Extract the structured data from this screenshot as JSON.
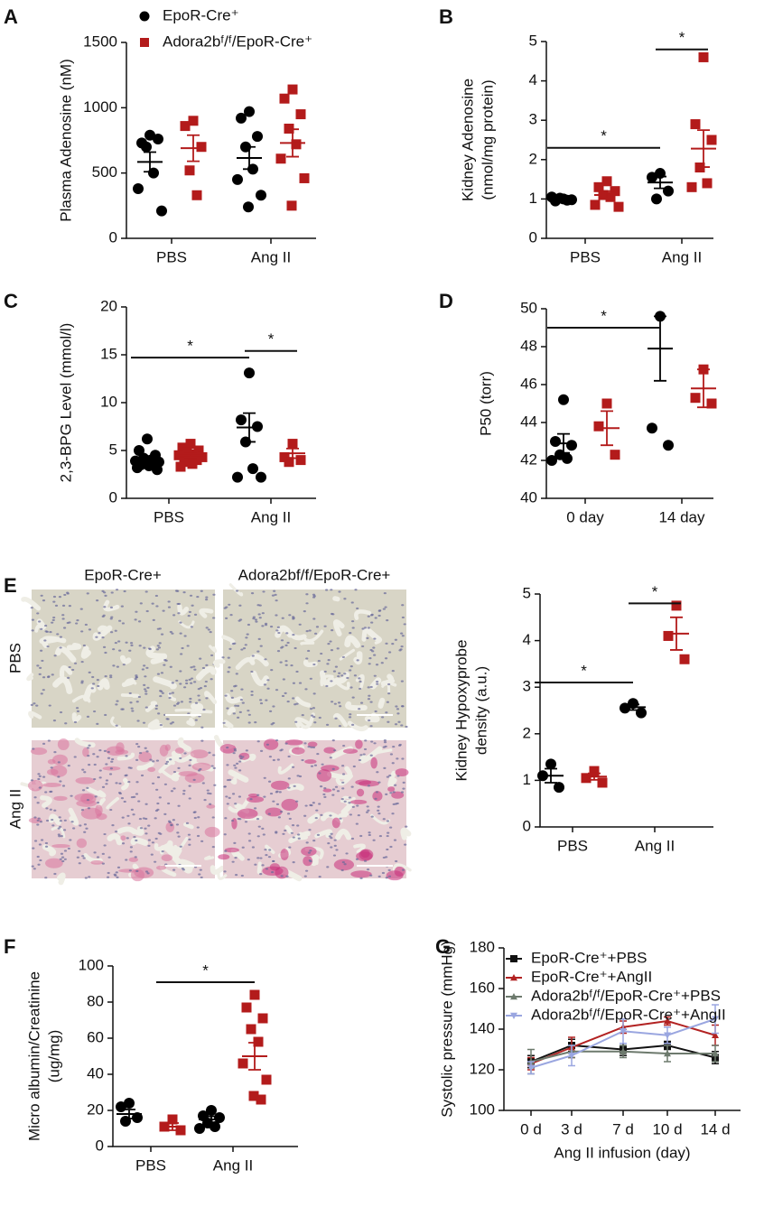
{
  "image_panel": {
    "panel": "E",
    "columns": [
      "EpoR-Cre+",
      "Adora2bf/f/EpoR-Cre+"
    ],
    "rows": [
      "PBS",
      "Ang II"
    ]
  },
  "chart_data": [
    {
      "type": "dotplot",
      "panel": "A",
      "ylabel": [
        "Plasma Adenosine (nM)"
      ],
      "categories": [
        "PBS",
        "Ang II"
      ],
      "ylim": [
        0,
        1500
      ],
      "yticks": [
        0,
        500,
        1000,
        1500
      ],
      "legend": true,
      "series": [
        {
          "name": "EpoR-Cre⁺",
          "color": "#000000",
          "marker": "circle",
          "points": [
            [
              790,
              730,
              760,
              700,
              500,
              380,
              210
            ],
            [
              970,
              920,
              780,
              700,
              530,
              450,
              330,
              240
            ]
          ],
          "mean": [
            585,
            615
          ],
          "sem": [
            75,
            85
          ]
        },
        {
          "name": "Adora2bᶠ/ᶠ/EpoR-Cre⁺",
          "color": "#b31b1b",
          "marker": "square",
          "points": [
            [
              900,
              860,
              700,
              520,
              330
            ],
            [
              1140,
              1070,
              950,
              840,
              720,
              610,
              460,
              250
            ]
          ],
          "mean": [
            690,
            730
          ],
          "sem": [
            100,
            105
          ]
        }
      ],
      "annotations": []
    },
    {
      "type": "dotplot",
      "panel": "B",
      "ylabel": [
        "Kidney Adenosine",
        "(nmol/mg protein)"
      ],
      "categories": [
        "PBS",
        "Ang II"
      ],
      "ylim": [
        0,
        5
      ],
      "yticks": [
        0,
        1,
        2,
        3,
        4,
        5
      ],
      "series": [
        {
          "color": "#000000",
          "marker": "circle",
          "points": [
            [
              1.0,
              0.95,
              0.98,
              1.02,
              0.97,
              1.05
            ],
            [
              1.65,
              1.55,
              1.2,
              1.0
            ]
          ],
          "mean": [
            1.0,
            1.42
          ],
          "sem": [
            0.03,
            0.15
          ]
        },
        {
          "color": "#b31b1b",
          "marker": "square",
          "points": [
            [
              1.45,
              1.3,
              1.2,
              1.1,
              1.05,
              0.85,
              0.8
            ],
            [
              4.6,
              2.9,
              2.5,
              1.8,
              1.4,
              1.3
            ]
          ],
          "mean": [
            1.1,
            2.28
          ],
          "sem": [
            0.1,
            0.47
          ]
        }
      ],
      "annotations": [
        {
          "text": "*",
          "y": 2.3,
          "from": [
            0,
            0
          ],
          "to": [
            1,
            0
          ]
        },
        {
          "text": "*",
          "y": 4.8,
          "from": [
            1,
            0
          ],
          "to": [
            1,
            1
          ]
        }
      ]
    },
    {
      "type": "dotplot",
      "panel": "C",
      "ylabel": [
        "2,3-BPG Level (mmol/l)"
      ],
      "categories": [
        "PBS",
        "Ang II"
      ],
      "ylim": [
        0,
        20
      ],
      "yticks": [
        0,
        5,
        10,
        15,
        20
      ],
      "series": [
        {
          "color": "#000000",
          "marker": "circle",
          "points": [
            [
              6.2,
              5.0,
              4.5,
              4.2,
              4.0,
              3.9,
              3.8,
              3.7,
              3.6,
              3.5,
              3.4,
              3.2,
              3.0
            ],
            [
              13.1,
              8.2,
              7.5,
              5.9,
              3.1,
              2.2,
              2.2
            ]
          ],
          "mean": [
            4.0,
            7.4
          ],
          "sem": [
            0.2,
            1.5
          ]
        },
        {
          "color": "#b31b1b",
          "marker": "square",
          "points": [
            [
              5.7,
              5.3,
              5.0,
              4.8,
              4.6,
              4.5,
              4.3,
              4.1,
              4.0,
              3.8,
              3.6,
              3.3
            ],
            [
              5.7,
              4.3,
              4.0,
              3.8
            ]
          ],
          "mean": [
            4.5,
            4.7
          ],
          "sem": [
            0.2,
            0.5
          ]
        }
      ],
      "annotations": [
        {
          "text": "*",
          "y": 14.7,
          "from": [
            0,
            0
          ],
          "to": [
            1,
            0
          ]
        },
        {
          "text": "*",
          "y": 15.4,
          "from": [
            1,
            0
          ],
          "to": [
            1,
            1
          ]
        }
      ]
    },
    {
      "type": "dotplot",
      "panel": "D",
      "ylabel": [
        "P50 (torr)"
      ],
      "categories": [
        "0 day",
        "14 day"
      ],
      "ylim": [
        40,
        50
      ],
      "yticks": [
        40,
        42,
        44,
        46,
        48,
        50
      ],
      "series": [
        {
          "color": "#000000",
          "marker": "circle",
          "points": [
            [
              45.2,
              43.0,
              42.8,
              42.3,
              42.1,
              42.0
            ],
            [
              49.6,
              43.7,
              42.8
            ]
          ],
          "mean": [
            42.9,
            47.9
          ],
          "sem": [
            0.5,
            1.7
          ]
        },
        {
          "color": "#b31b1b",
          "marker": "square",
          "points": [
            [
              45.0,
              43.8,
              42.3
            ],
            [
              46.8,
              45.3,
              45.0
            ]
          ],
          "mean": [
            43.7,
            45.8
          ],
          "sem": [
            0.9,
            1.0
          ]
        }
      ],
      "annotations": [
        {
          "text": "*",
          "y": 49.0,
          "from": [
            0,
            0
          ],
          "to": [
            1,
            0
          ]
        }
      ]
    },
    {
      "type": "dotplot",
      "ylabel": [
        "Kidney Hypoxyprobe",
        "density (a.u.)"
      ],
      "categories": [
        "PBS",
        "Ang II"
      ],
      "ylim": [
        0,
        5
      ],
      "yticks": [
        0,
        1,
        2,
        3,
        4,
        5
      ],
      "series": [
        {
          "color": "#000000",
          "marker": "circle",
          "points": [
            [
              1.35,
              1.1,
              0.85
            ],
            [
              2.65,
              2.55,
              2.45
            ]
          ],
          "mean": [
            1.1,
            2.57
          ],
          "sem": [
            0.15,
            0.06
          ]
        },
        {
          "color": "#b31b1b",
          "marker": "square",
          "points": [
            [
              1.2,
              1.05,
              0.95
            ],
            [
              4.75,
              4.1,
              3.6
            ]
          ],
          "mean": [
            1.08,
            4.15
          ],
          "sem": [
            0.07,
            0.35
          ]
        }
      ],
      "annotations": [
        {
          "text": "*",
          "y": 3.1,
          "from": [
            0,
            0
          ],
          "to": [
            1,
            0
          ]
        },
        {
          "text": "*",
          "y": 4.8,
          "from": [
            1,
            0
          ],
          "to": [
            1,
            1
          ]
        }
      ]
    },
    {
      "type": "dotplot",
      "panel": "F",
      "ylabel": [
        "Micro albumin/Creatinine",
        "(ug/mg)"
      ],
      "categories": [
        "PBS",
        "Ang II"
      ],
      "ylim": [
        0,
        100
      ],
      "yticks": [
        0,
        20,
        40,
        60,
        80,
        100
      ],
      "series": [
        {
          "color": "#000000",
          "marker": "circle",
          "points": [
            [
              24,
              22,
              16,
              14
            ],
            [
              20,
              17,
              16,
              13,
              11,
              10
            ]
          ],
          "mean": [
            18,
            15
          ],
          "sem": [
            2.5,
            1.7
          ]
        },
        {
          "color": "#b31b1b",
          "marker": "square",
          "points": [
            [
              15,
              11,
              9
            ],
            [
              84,
              77,
              71,
              65,
              58,
              46,
              37,
              28,
              26
            ]
          ],
          "mean": [
            11,
            50
          ],
          "sem": [
            2,
            7.5
          ]
        }
      ],
      "annotations": [
        {
          "text": "*",
          "y": 91,
          "from": [
            0,
            1
          ],
          "to": [
            1,
            1
          ]
        }
      ]
    },
    {
      "type": "line",
      "panel": "G",
      "xlabel": "Ang II infusion (day)",
      "ylabel": [
        "Systolic pressure (mmHg)"
      ],
      "categories": [
        "0 d",
        "3 d",
        "7 d",
        "10 d",
        "14 d"
      ],
      "ylim": [
        100,
        180
      ],
      "yticks": [
        100,
        120,
        140,
        160,
        180
      ],
      "legend": true,
      "series": [
        {
          "name": "EpoR-Cre⁺+PBS",
          "color": "#111111",
          "marker": "square",
          "values": [
            124,
            132,
            130,
            132,
            126
          ],
          "errors": [
            3,
            3,
            3,
            2,
            3
          ]
        },
        {
          "name": "EpoR-Cre⁺+AngII",
          "color": "#b22222",
          "marker": "triangle",
          "values": [
            123,
            131,
            141,
            144,
            137
          ],
          "errors": [
            3,
            5,
            3,
            2,
            5
          ]
        },
        {
          "name": "Adora2bᶠ/ᶠ/EpoR-Cre⁺+PBS",
          "color": "#6d7a6d",
          "marker": "triangle",
          "values": [
            124,
            129,
            129,
            128,
            128
          ],
          "errors": [
            6,
            3,
            3,
            4,
            4
          ]
        },
        {
          "name": "Adora2bᶠ/ᶠ/EpoR-Cre⁺+AngII",
          "color": "#9aa6e0",
          "marker": "triangle-down",
          "values": [
            121,
            127,
            139,
            137,
            145
          ],
          "errors": [
            3,
            5,
            6,
            4,
            7
          ]
        }
      ]
    }
  ]
}
